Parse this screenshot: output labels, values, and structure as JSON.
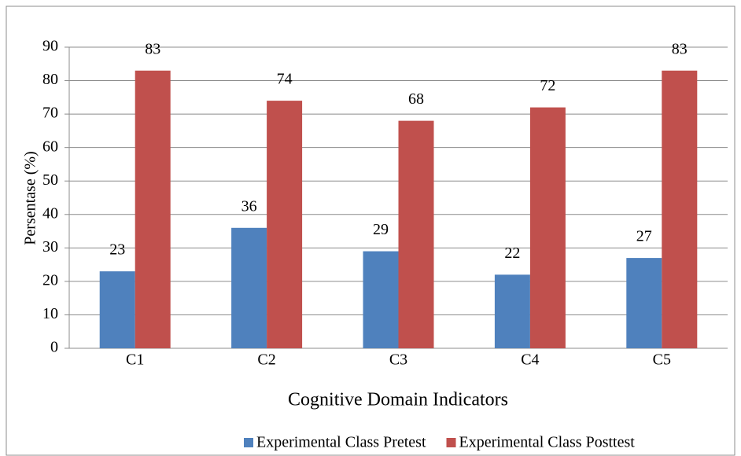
{
  "chart_data": {
    "type": "bar",
    "categories": [
      "C1",
      "C2",
      "C3",
      "C4",
      "C5"
    ],
    "series": [
      {
        "name": "Experimental Class Pretest",
        "color": "#4f81bd",
        "values": [
          23,
          36,
          29,
          22,
          27
        ]
      },
      {
        "name": "Experimental Class Posttest",
        "color": "#c0504d",
        "values": [
          83,
          74,
          68,
          72,
          83
        ]
      }
    ],
    "x_label": "Cognitive Domain Indicators",
    "y_label": "Persentase (%)",
    "ylim": [
      0,
      90
    ],
    "yticks": [
      0,
      10,
      20,
      30,
      40,
      50,
      60,
      70,
      80,
      90
    ],
    "grid": true,
    "legend": "bottom"
  }
}
